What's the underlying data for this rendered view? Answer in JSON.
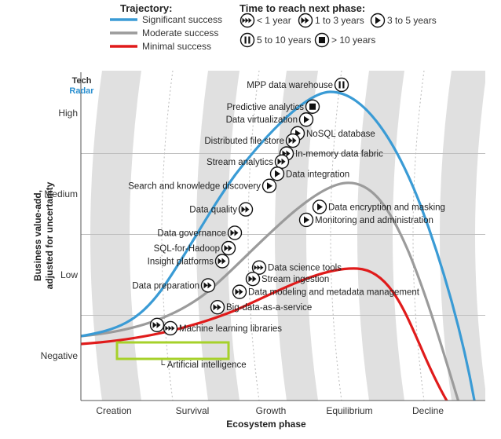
{
  "legend": {
    "trajectory_title": "Trajectory:",
    "trajectories": [
      {
        "label": "Significant success",
        "color": "#3a9bd5"
      },
      {
        "label": "Moderate success",
        "color": "#9b9b9b"
      },
      {
        "label": "Minimal success",
        "color": "#e01b1b"
      }
    ],
    "time_title": "Time to reach next phase:",
    "time_items": [
      {
        "label": "< 1 year",
        "icon": "triple-arrow-icon"
      },
      {
        "label": "1 to 3 years",
        "icon": "double-arrow-icon"
      },
      {
        "label": "3 to 5 years",
        "icon": "single-arrow-icon"
      },
      {
        "label": "5 to 10 years",
        "icon": "pause-icon"
      },
      {
        "label": "> 10 years",
        "icon": "stop-icon"
      }
    ]
  },
  "logo": {
    "line1": "Tech",
    "line2": "Radar"
  },
  "chart_data": {
    "type": "scatter",
    "xlabel": "Ecosystem phase",
    "ylabel": "Business value-add, adjusted for uncertainty",
    "x_categories": [
      "Creation",
      "Survival",
      "Growth",
      "Equilibrium",
      "Decline"
    ],
    "y_categories": [
      "Negative",
      "Low",
      "Medium",
      "High"
    ],
    "grid": "horizontal lines at category boundaries; alternating grey phase bands",
    "legend_placement": "top",
    "highlight": "Artificial intelligence",
    "highlight_color": "#a6d12a",
    "technologies": [
      {
        "label": "MPP data warehouse",
        "icon": "pause-icon",
        "x": 2.9,
        "y": 3.35
      },
      {
        "label": "Predictive analytics",
        "icon": "stop-icon",
        "x": 2.53,
        "y": 3.08
      },
      {
        "label": "Data virtualization",
        "icon": "single-arrow-icon",
        "x": 2.45,
        "y": 2.92
      },
      {
        "label": "NoSQL database",
        "icon": "single-arrow-icon",
        "x": 2.34,
        "y": 2.75
      },
      {
        "label": "Distributed file store",
        "icon": "double-arrow-icon",
        "x": 2.28,
        "y": 2.66
      },
      {
        "label": "In-memory data fabric",
        "icon": "double-arrow-icon",
        "x": 2.2,
        "y": 2.5
      },
      {
        "label": "Stream analytics",
        "icon": "double-arrow-icon",
        "x": 2.14,
        "y": 2.4
      },
      {
        "label": "Data integration",
        "icon": "single-arrow-icon",
        "x": 2.08,
        "y": 2.25
      },
      {
        "label": "Search and knowledge discovery",
        "icon": "single-arrow-icon",
        "x": 1.98,
        "y": 2.1
      },
      {
        "label": "Data encryption and masking",
        "icon": "single-arrow-icon",
        "x": 2.62,
        "y": 1.84
      },
      {
        "label": "Monitoring and administration",
        "icon": "single-arrow-icon",
        "x": 2.45,
        "y": 1.68
      },
      {
        "label": "Data quality",
        "icon": "double-arrow-icon",
        "x": 1.68,
        "y": 1.81
      },
      {
        "label": "Data governance",
        "icon": "double-arrow-icon",
        "x": 1.54,
        "y": 1.52
      },
      {
        "label": "SQL-for-Hadoop",
        "icon": "double-arrow-icon",
        "x": 1.46,
        "y": 1.33
      },
      {
        "label": "Insight platforms",
        "icon": "double-arrow-icon",
        "x": 1.38,
        "y": 1.17
      },
      {
        "label": "Data science tools",
        "icon": "triple-arrow-icon",
        "x": 1.85,
        "y": 1.09
      },
      {
        "label": "Stream ingestion",
        "icon": "double-arrow-icon",
        "x": 1.77,
        "y": 0.95
      },
      {
        "label": "Data preparation",
        "icon": "double-arrow-icon",
        "x": 1.2,
        "y": 0.87
      },
      {
        "label": "Data modeling and metadata management",
        "icon": "double-arrow-icon",
        "x": 1.6,
        "y": 0.79
      },
      {
        "label": "Big-data-as-a-service",
        "icon": "double-arrow-icon",
        "x": 1.32,
        "y": 0.6
      },
      {
        "label": "Machine learning libraries",
        "icon": "triple-arrow-icon",
        "x": 0.72,
        "y": 0.34
      },
      {
        "label": "Artificial intelligence",
        "icon": "double-arrow-icon",
        "x": 0.55,
        "y": 0.38
      }
    ]
  }
}
